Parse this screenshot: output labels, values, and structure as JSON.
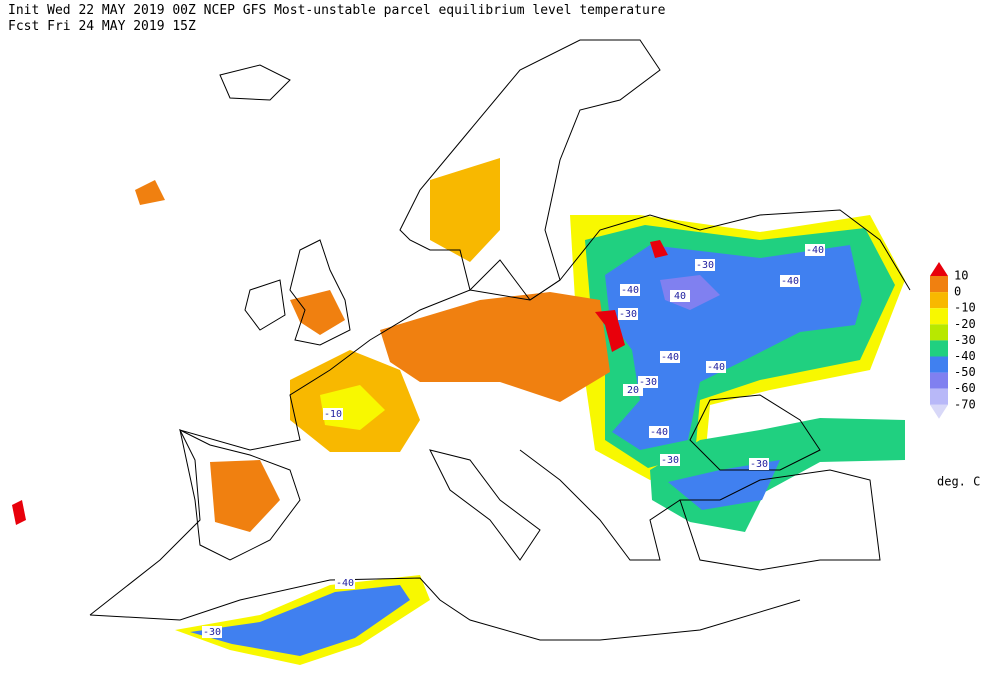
{
  "header": {
    "init": "Init  Wed 22 MAY 2019 00Z  NCEP GFS Most-unstable parcel equilibrium level temperature",
    "fcst": "Fcst Fri 24 MAY 2019 15Z"
  },
  "legend": {
    "levels": [
      10,
      0,
      -10,
      -20,
      -30,
      -40,
      -50,
      -60,
      -70
    ],
    "colors": [
      "#e8000b",
      "#f08010",
      "#f8b800",
      "#f8f800",
      "#b8e800",
      "#20d080",
      "#4080f0",
      "#8080f0",
      "#b8b8f8",
      "#d8d8f8"
    ],
    "unit": "deg. C"
  },
  "contour_labels": [
    "-40",
    "-30",
    "-40",
    "40",
    "-30",
    "-40",
    "-40",
    "-40",
    "20",
    "-30",
    "-10",
    "-40",
    "-30",
    "-30",
    "-40",
    "-30"
  ]
}
